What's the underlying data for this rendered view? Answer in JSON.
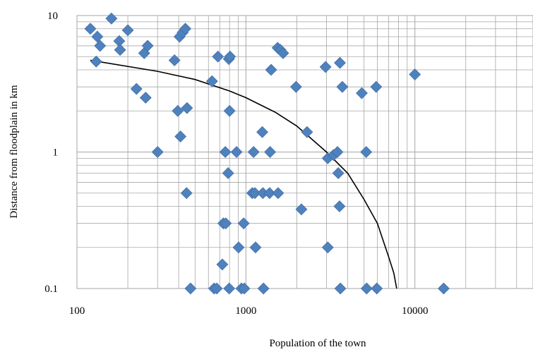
{
  "chart_data": {
    "type": "scatter",
    "title": "",
    "xlabel": "Population of the town",
    "ylabel": "Distance from floodplain in km",
    "x_scale": "log",
    "y_scale": "log",
    "xlim": [
      100,
      50000
    ],
    "ylim": [
      0.1,
      10
    ],
    "x_ticks": [
      100,
      1000,
      10000
    ],
    "x_tick_labels": [
      "100",
      "1000",
      "10000"
    ],
    "y_ticks": [
      0.1,
      1,
      10
    ],
    "y_tick_labels": [
      "0.1",
      "1",
      "10"
    ],
    "grid": true,
    "legend": "none",
    "marker_color": "#4f81bd",
    "trendline_color": "#000000",
    "grid_color": "#a6a6a6",
    "series": [
      {
        "points": [
          [
            120,
            8.0
          ],
          [
            130,
            4.6
          ],
          [
            132,
            7.0
          ],
          [
            137,
            6.0
          ],
          [
            160,
            9.5
          ],
          [
            178,
            6.5
          ],
          [
            180,
            5.6
          ],
          [
            200,
            7.8
          ],
          [
            225,
            2.9
          ],
          [
            250,
            5.3
          ],
          [
            255,
            2.5
          ],
          [
            262,
            6.0
          ],
          [
            300,
            1.0
          ],
          [
            378,
            4.7
          ],
          [
            395,
            2.0
          ],
          [
            405,
            7.0
          ],
          [
            410,
            1.3
          ],
          [
            422,
            7.5
          ],
          [
            438,
            8.0
          ],
          [
            445,
            0.5
          ],
          [
            448,
            2.1
          ],
          [
            470,
            0.1
          ],
          [
            630,
            3.3
          ],
          [
            648,
            0.1
          ],
          [
            672,
            0.1
          ],
          [
            683,
            5.0
          ],
          [
            725,
            0.15
          ],
          [
            735,
            0.3
          ],
          [
            755,
            1.0
          ],
          [
            760,
            0.3
          ],
          [
            785,
            0.7
          ],
          [
            792,
            4.8
          ],
          [
            796,
            0.1
          ],
          [
            800,
            2.0
          ],
          [
            805,
            5.0
          ],
          [
            880,
            1.0
          ],
          [
            905,
            0.2
          ],
          [
            940,
            0.1
          ],
          [
            970,
            0.3
          ],
          [
            978,
            0.1
          ],
          [
            1090,
            0.5
          ],
          [
            1110,
            1.0
          ],
          [
            1130,
            0.5
          ],
          [
            1140,
            0.2
          ],
          [
            1250,
            1.4
          ],
          [
            1260,
            0.5
          ],
          [
            1270,
            0.1
          ],
          [
            1380,
            0.5
          ],
          [
            1390,
            1.0
          ],
          [
            1410,
            4.0
          ],
          [
            1540,
            5.8
          ],
          [
            1550,
            0.5
          ],
          [
            1600,
            5.6
          ],
          [
            1660,
            5.3
          ],
          [
            1980,
            3.0
          ],
          [
            2130,
            0.38
          ],
          [
            2300,
            1.4
          ],
          [
            2960,
            4.2
          ],
          [
            3050,
            0.9
          ],
          [
            3050,
            0.2
          ],
          [
            3300,
            0.95
          ],
          [
            3480,
            1.0
          ],
          [
            3520,
            0.7
          ],
          [
            3580,
            0.4
          ],
          [
            3600,
            4.5
          ],
          [
            3620,
            0.1
          ],
          [
            3720,
            3.0
          ],
          [
            4850,
            2.7
          ],
          [
            5150,
            1.0
          ],
          [
            5180,
            0.1
          ],
          [
            5900,
            3.0
          ],
          [
            5950,
            0.1
          ],
          [
            10000,
            3.7
          ],
          [
            14800,
            0.1
          ]
        ]
      }
    ],
    "trendline": {
      "x": [
        120,
        300,
        500,
        800,
        1000,
        1500,
        2000,
        3000,
        4000,
        5000,
        6000,
        7000,
        7500,
        7800
      ],
      "y": [
        4.7,
        3.9,
        3.4,
        2.8,
        2.5,
        1.95,
        1.55,
        1.0,
        0.7,
        0.45,
        0.3,
        0.17,
        0.13,
        0.1
      ]
    }
  }
}
